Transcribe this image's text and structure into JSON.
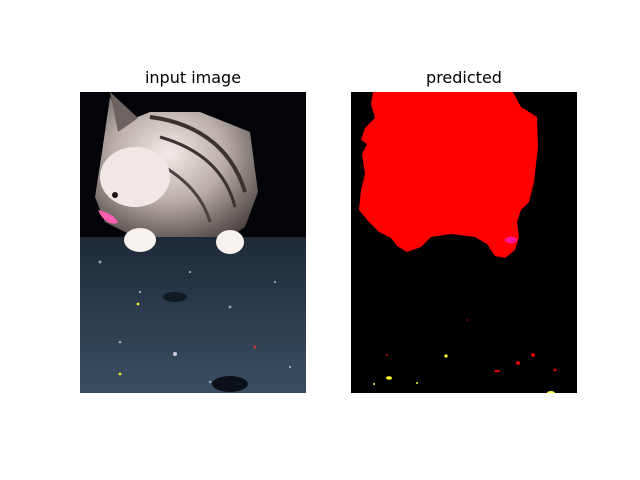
{
  "figure": {
    "panels": [
      {
        "title": "input image"
      },
      {
        "title": "predicted"
      }
    ]
  },
  "colors": {
    "background": "#ffffff",
    "image_background": "#000000",
    "ground": "#2b3a4a",
    "cat_fur": "#c9c2c0",
    "prediction_red": "#ff0000",
    "prediction_magenta": "#ff1493",
    "prediction_yellow": "#ffff33"
  }
}
